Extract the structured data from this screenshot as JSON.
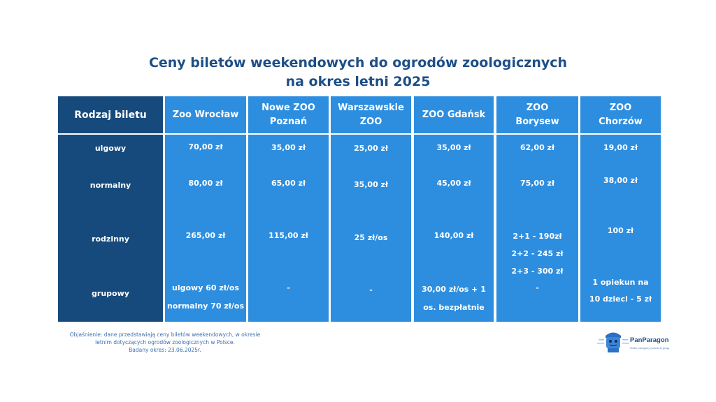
{
  "title_line1": "Ceny biletów weekendowych do ogrodów zoologicznych",
  "title_line2": "na okres letni 2025",
  "colors": {
    "dark_column": "#174a7c",
    "data_columns": "#2d8ee0",
    "title": "#1d4e86"
  },
  "table": {
    "header_row_label": "Rodzaj biletu",
    "ticket_types": [
      "ulgowy",
      "normalny",
      "rodzinny",
      "grupowy"
    ],
    "zoos": [
      {
        "name_lines": [
          "Zoo Wrocław"
        ],
        "ulgowy": "70,00 zł",
        "normalny": "80,00 zł",
        "rodzinny": "265,00 zł",
        "grupowy_lines": [
          "ulgowy 60 zł/os",
          "normalny 70 zł/os"
        ]
      },
      {
        "name_lines": [
          "Nowe ZOO",
          "Poznań"
        ],
        "ulgowy": "35,00 zł",
        "normalny": "65,00 zł",
        "rodzinny": "115,00 zł",
        "grupowy_lines": [
          "-"
        ]
      },
      {
        "name_lines": [
          "Warszawskie",
          "ZOO"
        ],
        "ulgowy": "25,00 zł",
        "normalny": "35,00 zł",
        "rodzinny": "25 zł/os",
        "grupowy_lines": [
          "-"
        ]
      },
      {
        "name_lines": [
          "ZOO Gdańsk"
        ],
        "ulgowy": "35,00 zł",
        "normalny": "45,00 zł",
        "rodzinny": "140,00 zł",
        "grupowy_lines": [
          "30,00 zł/os + 1",
          "os. bezpłatnie"
        ]
      },
      {
        "name_lines": [
          "ZOO",
          "Borysew"
        ],
        "ulgowy": "62,00 zł",
        "normalny": "75,00 zł",
        "rodzinny_lines": [
          "2+1 - 190zł",
          "2+2 - 245 zł",
          "2+3 - 300 zł"
        ],
        "grupowy_lines": [
          "-"
        ]
      },
      {
        "name_lines": [
          "ZOO",
          "Chorzów"
        ],
        "ulgowy": "19,00 zł",
        "normalny": "38,00 zł",
        "rodzinny": "100 zł",
        "grupowy_lines": [
          "1 opiekun na",
          "10 dzieci - 5 zł"
        ]
      }
    ]
  },
  "footnote": {
    "line1": "Objaśnienie: dane przedstawiają ceny biletów weekendowych, w okresie",
    "line2": "letnim dotyczących ogrodów zoologicznych w Polsce.",
    "line3": "Badany okres: 23.06.2025r."
  },
  "brand": {
    "name": "PanParagon",
    "tagline": "Gdzie paragony (również) grają"
  }
}
